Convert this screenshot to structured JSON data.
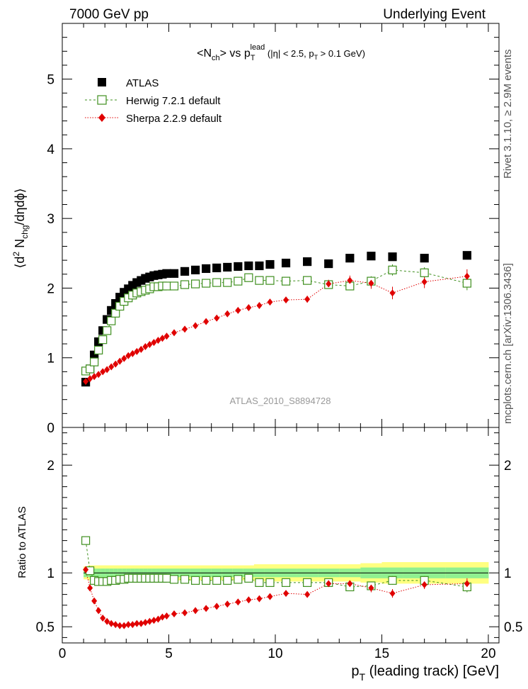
{
  "header": {
    "left": "7000 GeV pp",
    "right": "Underlying Event"
  },
  "side_labels": {
    "top": "Rivet 3.1.10, ≥ 2.9M events",
    "bottom": "mcplots.cern.ch [arXiv:1306.3436]"
  },
  "watermark": "ATLAS_2010_S8894728",
  "colors": {
    "atlas": "#000000",
    "herwig": "#3f8f1f",
    "sherpa": "#e00000",
    "band_outer": "#ffff80",
    "band_inner": "#90f090"
  },
  "chart_data": [
    {
      "type": "scatter",
      "panel": "main",
      "title_parts": {
        "a": "<N",
        "a_sub": "ch",
        "b": "> vs p",
        "b_sub": "T",
        "b_sup": "lead",
        "c": " (|η| < 2.5, p",
        "c_sub": "T",
        "d": " > 0.1 GeV)"
      },
      "ylabel_parts": {
        "a": "⟨d",
        "sup": "2",
        "b": " N",
        "sub": "chg",
        "c": "/dηdϕ⟩"
      },
      "xlim": [
        0,
        20.5
      ],
      "ylim": [
        0,
        5.8
      ],
      "yticks": [
        0,
        1,
        2,
        3,
        4,
        5
      ],
      "legend_position": "top-left",
      "series": [
        {
          "name": "ATLAS",
          "marker": "filled-square",
          "x": [
            1.1,
            1.3,
            1.5,
            1.7,
            1.9,
            2.1,
            2.3,
            2.5,
            2.7,
            2.9,
            3.1,
            3.3,
            3.5,
            3.7,
            3.9,
            4.1,
            4.3,
            4.5,
            4.7,
            4.9,
            5.25,
            5.75,
            6.25,
            6.75,
            7.25,
            7.75,
            8.25,
            8.75,
            9.25,
            9.75,
            10.5,
            11.5,
            12.5,
            13.5,
            14.5,
            15.5,
            17.0,
            19.0
          ],
          "y": [
            0.65,
            0.84,
            1.04,
            1.23,
            1.39,
            1.55,
            1.68,
            1.78,
            1.87,
            1.94,
            1.99,
            2.04,
            2.08,
            2.11,
            2.14,
            2.16,
            2.18,
            2.19,
            2.2,
            2.21,
            2.21,
            2.24,
            2.26,
            2.28,
            2.29,
            2.3,
            2.31,
            2.32,
            2.32,
            2.34,
            2.36,
            2.38,
            2.35,
            2.43,
            2.46,
            2.45,
            2.43,
            2.47
          ]
        },
        {
          "name": "Herwig 7.2.1 default",
          "marker": "open-square",
          "x": [
            1.1,
            1.3,
            1.5,
            1.7,
            1.9,
            2.1,
            2.3,
            2.5,
            2.7,
            2.9,
            3.1,
            3.3,
            3.5,
            3.7,
            3.9,
            4.1,
            4.3,
            4.5,
            4.7,
            4.9,
            5.25,
            5.75,
            6.25,
            6.75,
            7.25,
            7.75,
            8.25,
            8.75,
            9.25,
            9.75,
            10.5,
            11.5,
            12.5,
            13.5,
            14.5,
            15.5,
            17.0,
            19.0
          ],
          "y": [
            0.81,
            0.84,
            0.94,
            1.11,
            1.26,
            1.39,
            1.53,
            1.64,
            1.74,
            1.81,
            1.86,
            1.9,
            1.93,
            1.95,
            1.97,
            1.99,
            2.02,
            2.02,
            2.03,
            2.03,
            2.03,
            2.05,
            2.06,
            2.07,
            2.08,
            2.08,
            2.1,
            2.15,
            2.11,
            2.11,
            2.1,
            2.11,
            2.05,
            2.03,
            2.1,
            2.26,
            2.22,
            2.07
          ],
          "err": [
            0.02,
            0.02,
            0.02,
            0.02,
            0.02,
            0.02,
            0.02,
            0.02,
            0.02,
            0.02,
            0.02,
            0.02,
            0.02,
            0.02,
            0.02,
            0.02,
            0.02,
            0.02,
            0.02,
            0.02,
            0.02,
            0.02,
            0.02,
            0.02,
            0.02,
            0.02,
            0.02,
            0.03,
            0.03,
            0.03,
            0.03,
            0.04,
            0.05,
            0.06,
            0.07,
            0.08,
            0.08,
            0.1
          ]
        },
        {
          "name": "Sherpa 2.2.9 default",
          "marker": "filled-diamond",
          "x": [
            1.1,
            1.3,
            1.5,
            1.7,
            1.9,
            2.1,
            2.3,
            2.5,
            2.7,
            2.9,
            3.1,
            3.3,
            3.5,
            3.7,
            3.9,
            4.1,
            4.3,
            4.5,
            4.7,
            4.9,
            5.25,
            5.75,
            6.25,
            6.75,
            7.25,
            7.75,
            8.25,
            8.75,
            9.25,
            9.75,
            10.5,
            11.5,
            12.5,
            13.5,
            14.5,
            15.5,
            17.0,
            19.0
          ],
          "y": [
            0.66,
            0.7,
            0.73,
            0.76,
            0.8,
            0.83,
            0.87,
            0.91,
            0.95,
            0.99,
            1.03,
            1.06,
            1.09,
            1.12,
            1.16,
            1.19,
            1.22,
            1.25,
            1.28,
            1.31,
            1.36,
            1.41,
            1.46,
            1.52,
            1.57,
            1.63,
            1.68,
            1.72,
            1.75,
            1.8,
            1.83,
            1.84,
            2.06,
            2.11,
            2.07,
            1.93,
            2.09,
            2.17
          ],
          "err": [
            0.01,
            0.01,
            0.01,
            0.01,
            0.01,
            0.01,
            0.01,
            0.01,
            0.01,
            0.01,
            0.01,
            0.01,
            0.01,
            0.01,
            0.01,
            0.01,
            0.01,
            0.01,
            0.01,
            0.01,
            0.02,
            0.02,
            0.02,
            0.02,
            0.02,
            0.02,
            0.03,
            0.03,
            0.03,
            0.04,
            0.04,
            0.05,
            0.06,
            0.07,
            0.08,
            0.09,
            0.09,
            0.1
          ]
        }
      ]
    },
    {
      "type": "scatter",
      "panel": "ratio",
      "xlabel_parts": {
        "a": "p",
        "sub": "T",
        "b": " (leading track) [GeV]"
      },
      "ylabel": "Ratio to ATLAS",
      "xlim": [
        0,
        20.5
      ],
      "ylim": [
        0.35,
        2.35
      ],
      "xticks": [
        0,
        5,
        10,
        15,
        20
      ],
      "yticks": [
        0.5,
        1,
        2
      ],
      "reference_line": 1,
      "band_x_edges": [
        1.0,
        1.2,
        1.4,
        1.6,
        1.8,
        2.0,
        2.2,
        2.4,
        2.6,
        2.8,
        3.0,
        3.2,
        3.4,
        3.6,
        3.8,
        4.0,
        4.2,
        4.4,
        4.6,
        4.8,
        5.0,
        5.5,
        6.0,
        6.5,
        7.0,
        7.5,
        8.0,
        8.5,
        9.0,
        9.5,
        10.0,
        11.0,
        12.0,
        13.0,
        14.0,
        15.0,
        16.0,
        18.0,
        20.0
      ],
      "band_inner_halfwidth": [
        0.04,
        0.04,
        0.04,
        0.04,
        0.04,
        0.04,
        0.04,
        0.04,
        0.04,
        0.04,
        0.04,
        0.04,
        0.04,
        0.04,
        0.04,
        0.04,
        0.04,
        0.04,
        0.04,
        0.04,
        0.04,
        0.04,
        0.04,
        0.04,
        0.04,
        0.04,
        0.04,
        0.04,
        0.04,
        0.04,
        0.04,
        0.04,
        0.04,
        0.04,
        0.05,
        0.05,
        0.05,
        0.05
      ],
      "band_outer_halfwidth": [
        0.06,
        0.07,
        0.07,
        0.07,
        0.07,
        0.07,
        0.07,
        0.07,
        0.07,
        0.07,
        0.07,
        0.07,
        0.07,
        0.07,
        0.07,
        0.07,
        0.07,
        0.07,
        0.07,
        0.07,
        0.07,
        0.07,
        0.07,
        0.07,
        0.07,
        0.07,
        0.07,
        0.07,
        0.08,
        0.08,
        0.08,
        0.08,
        0.08,
        0.08,
        0.09,
        0.1,
        0.1,
        0.1
      ],
      "series": [
        {
          "name": "Herwig 7.2.1 default",
          "x": [
            1.1,
            1.3,
            1.5,
            1.7,
            1.9,
            2.1,
            2.3,
            2.5,
            2.7,
            2.9,
            3.1,
            3.3,
            3.5,
            3.7,
            3.9,
            4.1,
            4.3,
            4.5,
            4.7,
            4.9,
            5.25,
            5.75,
            6.25,
            6.75,
            7.25,
            7.75,
            8.25,
            8.75,
            9.25,
            9.75,
            10.5,
            11.5,
            12.5,
            13.5,
            14.5,
            15.5,
            17.0,
            19.0
          ],
          "y": [
            1.3,
            1.02,
            0.93,
            0.92,
            0.92,
            0.92,
            0.93,
            0.93,
            0.94,
            0.94,
            0.95,
            0.95,
            0.95,
            0.95,
            0.95,
            0.95,
            0.95,
            0.95,
            0.95,
            0.95,
            0.94,
            0.94,
            0.93,
            0.93,
            0.93,
            0.93,
            0.94,
            0.95,
            0.91,
            0.91,
            0.91,
            0.91,
            0.91,
            0.87,
            0.88,
            0.93,
            0.93,
            0.87
          ],
          "err": [
            0.03,
            0.02,
            0.02,
            0.02,
            0.02,
            0.02,
            0.02,
            0.02,
            0.02,
            0.02,
            0.02,
            0.02,
            0.02,
            0.02,
            0.02,
            0.02,
            0.02,
            0.02,
            0.02,
            0.02,
            0.02,
            0.02,
            0.02,
            0.02,
            0.02,
            0.02,
            0.02,
            0.02,
            0.02,
            0.02,
            0.02,
            0.02,
            0.02,
            0.03,
            0.03,
            0.04,
            0.04,
            0.05
          ]
        },
        {
          "name": "Sherpa 2.2.9 default",
          "x": [
            1.1,
            1.3,
            1.5,
            1.7,
            1.9,
            2.1,
            2.3,
            2.5,
            2.7,
            2.9,
            3.1,
            3.3,
            3.5,
            3.7,
            3.9,
            4.1,
            4.3,
            4.5,
            4.7,
            4.9,
            5.25,
            5.75,
            6.25,
            6.75,
            7.25,
            7.75,
            8.25,
            8.75,
            9.25,
            9.75,
            10.5,
            11.5,
            12.5,
            13.5,
            14.5,
            15.5,
            17.0,
            19.0
          ],
          "y": [
            1.03,
            0.86,
            0.74,
            0.65,
            0.58,
            0.55,
            0.53,
            0.52,
            0.51,
            0.51,
            0.52,
            0.52,
            0.53,
            0.53,
            0.54,
            0.55,
            0.56,
            0.57,
            0.59,
            0.6,
            0.62,
            0.63,
            0.65,
            0.67,
            0.69,
            0.71,
            0.73,
            0.75,
            0.76,
            0.78,
            0.81,
            0.8,
            0.9,
            0.9,
            0.86,
            0.81,
            0.89,
            0.9
          ],
          "err": [
            0.02,
            0.01,
            0.01,
            0.01,
            0.01,
            0.01,
            0.01,
            0.01,
            0.01,
            0.01,
            0.01,
            0.01,
            0.01,
            0.01,
            0.01,
            0.01,
            0.01,
            0.01,
            0.01,
            0.01,
            0.01,
            0.01,
            0.01,
            0.01,
            0.01,
            0.01,
            0.01,
            0.02,
            0.02,
            0.02,
            0.02,
            0.02,
            0.03,
            0.03,
            0.04,
            0.04,
            0.04,
            0.05
          ]
        }
      ]
    }
  ]
}
